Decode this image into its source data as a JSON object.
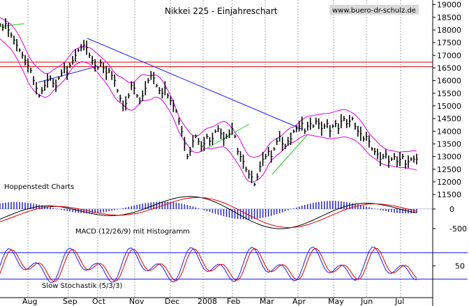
{
  "chart_data": {
    "type": "line",
    "title": "Nikkei 225 - Einjahreschart",
    "watermark": "www.buero-dr-schulz.de",
    "source_label": "Hoppenstedt Charts",
    "x_labels": [
      "Aug",
      "Sep",
      "Oct",
      "Nov",
      "Dec",
      "2008",
      "Feb",
      "Mar",
      "Apr",
      "May",
      "Jun",
      "Jul"
    ],
    "price_panel": {
      "ylim": [
        11200,
        19100
      ],
      "y_ticks": [
        11500,
        12000,
        12500,
        13000,
        13500,
        14000,
        14500,
        15000,
        15500,
        16000,
        16500,
        17000,
        17500,
        18000,
        18500,
        19000
      ],
      "horizontal_resistance": [
        16550,
        16730
      ],
      "price_x": [
        0,
        4,
        8,
        12,
        16,
        20,
        24,
        28,
        32,
        36,
        40,
        44,
        48,
        52,
        56,
        60,
        64,
        68,
        72,
        76,
        80,
        84,
        88,
        92,
        96,
        100,
        104,
        108,
        112,
        116,
        120,
        124,
        128,
        132,
        136,
        140,
        144,
        148,
        152,
        156,
        160,
        164,
        168,
        172,
        176,
        180,
        184,
        188,
        192,
        196,
        200,
        204,
        208,
        212,
        216,
        220,
        224,
        228,
        232,
        236,
        240,
        244,
        248,
        252,
        256,
        260,
        264,
        268,
        272,
        276,
        280,
        284,
        288,
        292,
        296,
        300,
        304,
        308,
        312,
        316,
        320,
        324,
        328,
        332,
        336,
        340,
        344,
        348,
        352,
        356,
        360,
        364,
        368,
        372,
        376,
        380,
        384,
        388,
        392,
        396,
        400,
        404,
        408,
        412,
        416,
        420,
        424,
        428,
        432,
        436,
        440,
        444,
        448,
        452,
        456,
        460,
        464,
        468,
        472,
        476,
        480,
        484,
        488,
        492,
        496,
        500,
        504,
        508,
        512,
        516,
        520,
        524,
        528,
        532,
        536,
        540,
        544,
        548,
        552,
        556,
        560,
        564,
        568,
        572,
        576,
        580,
        584,
        588,
        592,
        596
      ],
      "price_y": [
        18200,
        18100,
        18250,
        18000,
        17800,
        17600,
        17400,
        17200,
        17000,
        16800,
        16600,
        16400,
        16000,
        15700,
        15400,
        15600,
        15800,
        16000,
        16100,
        15900,
        15800,
        16100,
        16300,
        16500,
        16300,
        16600,
        16800,
        17000,
        17200,
        17300,
        17400,
        17300,
        17000,
        16800,
        16600,
        16500,
        16700,
        16500,
        16300,
        16400,
        16200,
        16000,
        15600,
        15300,
        15000,
        15100,
        15400,
        15800,
        15700,
        15400,
        15200,
        15400,
        15700,
        16000,
        16200,
        16100,
        15800,
        15600,
        15500,
        15700,
        15400,
        15200,
        15000,
        14800,
        14400,
        14000,
        13500,
        13000,
        13200,
        13600,
        13800,
        13600,
        13400,
        13500,
        13800,
        13600,
        13700,
        14000,
        14100,
        13900,
        13700,
        13800,
        13900,
        14100,
        13800,
        13200,
        13000,
        12800,
        12500,
        12300,
        12200,
        11900,
        12200,
        12600,
        12900,
        13000,
        13200,
        13000,
        13300,
        13600,
        13800,
        13500,
        13400,
        13600,
        13700,
        14000,
        14100,
        14200,
        14300,
        14000,
        14200,
        14300,
        14200,
        14400,
        14300,
        14100,
        14200,
        14300,
        14000,
        14200,
        14300,
        14100,
        14400,
        14500,
        14300,
        14400,
        14500,
        14200,
        14000,
        13900,
        13700,
        13800,
        13600,
        13300,
        13200,
        13100,
        12900,
        13000,
        13100,
        12800,
        12900,
        13000,
        12800,
        12900,
        13000,
        12700,
        12800,
        12900,
        12900,
        12900
      ]
    },
    "macd_panel": {
      "label": "MACD (12/26/9) mit Histogramm",
      "y_ticks": [
        0,
        -500
      ],
      "ylim": [
        -750,
        300
      ]
    },
    "stoch_panel": {
      "label": "Slow Stochastik (5/3/3)",
      "y_ticks": [
        50
      ],
      "levels": [
        80,
        20
      ]
    }
  }
}
